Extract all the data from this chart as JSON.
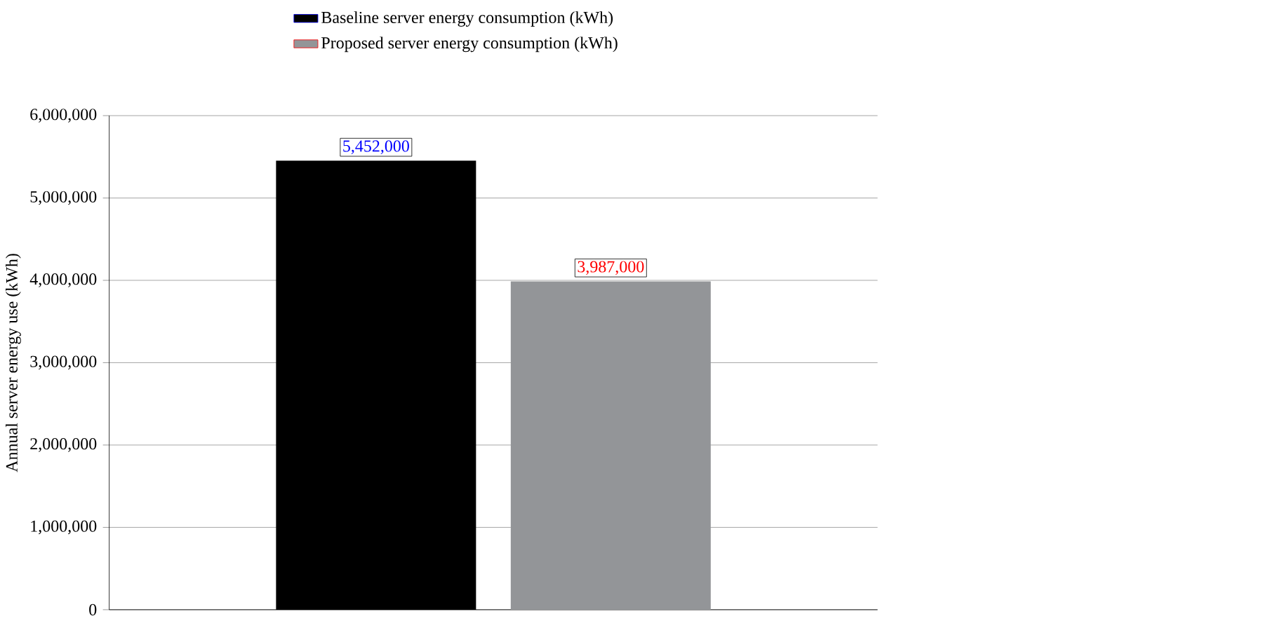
{
  "chart_data": {
    "type": "bar",
    "ylabel": "Annual server energy use (kWh)",
    "categories": [
      null
    ],
    "series": [
      {
        "name": "Baseline server energy consumption (kWh)",
        "color": "#000000",
        "values": [
          5452000
        ],
        "value_labels": [
          "5,452,000"
        ]
      },
      {
        "name": "Proposed server energy consumption (kWh)",
        "color": "#939598",
        "values": [
          3987000
        ],
        "value_labels": [
          "3,987,000"
        ]
      }
    ],
    "ylim": [
      0,
      6000000
    ],
    "yticks": [
      0,
      {
        "value": 1000000,
        "label": "1,000,000"
      },
      {
        "value": 2000000,
        "label": "2,000,000"
      },
      {
        "value": 3000000,
        "label": "3,000,000"
      },
      {
        "value": 4000000,
        "label": "4,000,000"
      },
      {
        "value": 5000000,
        "label": "5,000,000"
      },
      {
        "value": 6000000,
        "label": "6,000,000"
      }
    ],
    "grid": "y",
    "legend": "top"
  }
}
